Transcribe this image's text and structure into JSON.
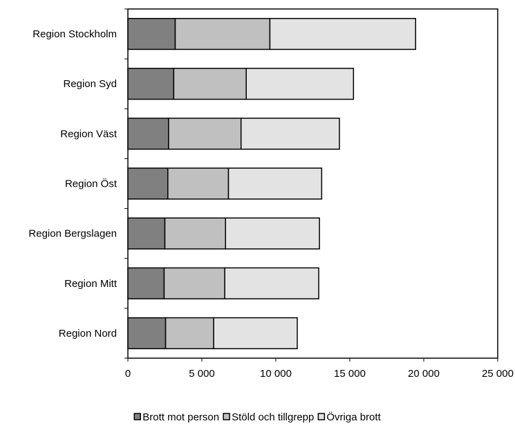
{
  "chart_data": {
    "type": "bar",
    "orientation": "horizontal",
    "stacked": true,
    "title": "",
    "xlabel": "",
    "ylabel": "",
    "xlim": [
      0,
      25000
    ],
    "grid": false,
    "legend_position": "bottom",
    "categories": [
      "Region Stockholm",
      "Region Syd",
      "Region Väst",
      "Region Öst",
      "Region Bergslagen",
      "Region Mitt",
      "Region Nord"
    ],
    "x_ticks": [
      "0",
      "5 000",
      "10 000",
      "15 000",
      "20 000",
      "25 000"
    ],
    "x_tick_values": [
      0,
      5000,
      10000,
      15000,
      20000,
      25000
    ],
    "series": [
      {
        "name": "Brott mot person",
        "color": "#808080",
        "values": [
          3200,
          3100,
          2750,
          2700,
          2500,
          2450,
          2550
        ]
      },
      {
        "name": "Stöld och tillgrepp",
        "color": "#c0c0c0",
        "values": [
          6400,
          4900,
          4900,
          4100,
          4100,
          4100,
          3250
        ]
      },
      {
        "name": "Övriga brott",
        "color": "#e3e3e3",
        "values": [
          9850,
          7250,
          6650,
          6300,
          6350,
          6350,
          5650
        ]
      }
    ]
  }
}
